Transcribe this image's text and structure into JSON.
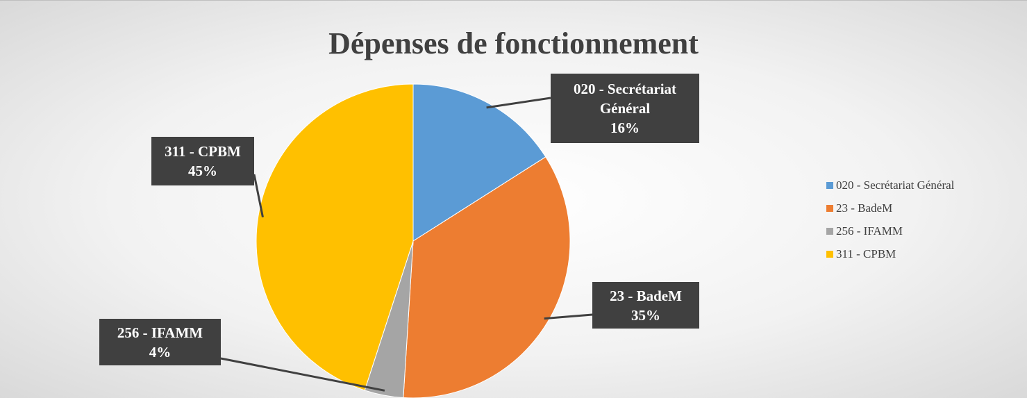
{
  "chart_data": {
    "type": "pie",
    "title": "Dépenses de fonctionnement",
    "categories": [
      "020 - Secrétariat Général",
      "23 - BadeM",
      "256 - IFAMM",
      "311 - CPBM"
    ],
    "values": [
      16,
      35,
      4,
      45
    ],
    "value_labels": [
      "16%",
      "35%",
      "4%",
      "45%"
    ],
    "colors": [
      "#5b9bd5",
      "#ed7d31",
      "#a5a5a5",
      "#ffc000"
    ],
    "legend": "right"
  }
}
